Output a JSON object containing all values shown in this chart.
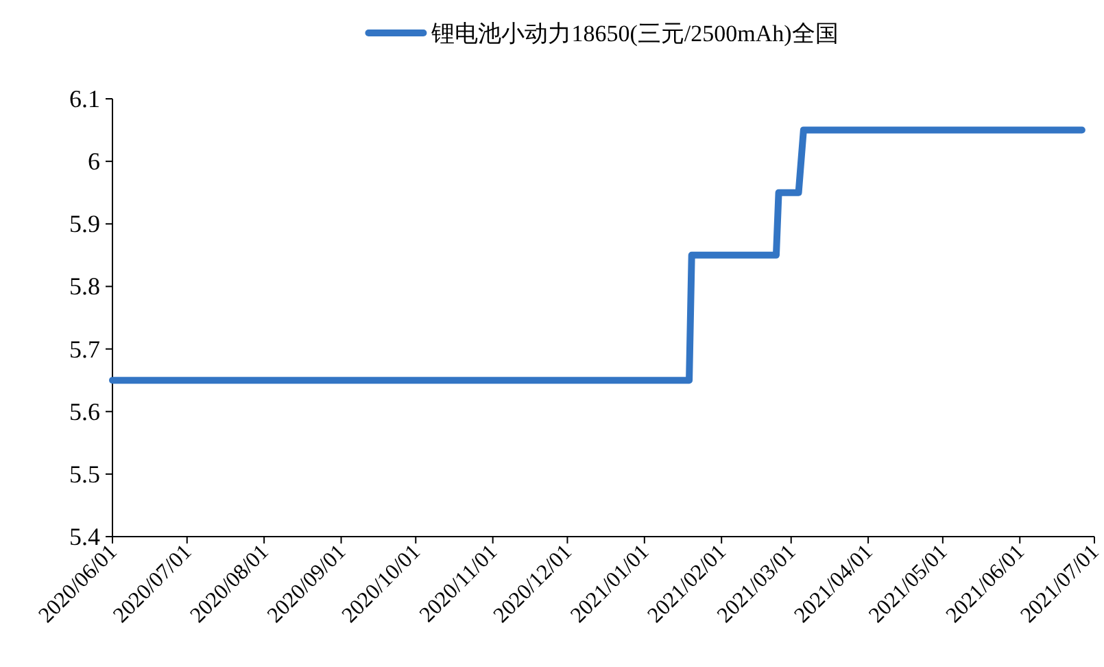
{
  "chart_data": {
    "type": "line",
    "x": [
      "2020-06-01",
      "2021-01-19",
      "2021-01-20",
      "2021-02-23",
      "2021-02-24",
      "2021-03-04",
      "2021-03-06",
      "2021-06-26"
    ],
    "series": [
      {
        "name": "锂电池小动力18650(三元/2500mAh)全国",
        "color": "#3375c4",
        "values": [
          5.65,
          5.65,
          5.85,
          5.85,
          5.95,
          5.95,
          6.05,
          6.05
        ]
      }
    ],
    "xlim": [
      "2020-06-01",
      "2021-07-01"
    ],
    "xticks": [
      {
        "value": "2020-06-01",
        "label": "2020/06/01"
      },
      {
        "value": "2020-07-01",
        "label": "2020/07/01"
      },
      {
        "value": "2020-08-01",
        "label": "2020/08/01"
      },
      {
        "value": "2020-09-01",
        "label": "2020/09/01"
      },
      {
        "value": "2020-10-01",
        "label": "2020/10/01"
      },
      {
        "value": "2020-11-01",
        "label": "2020/11/01"
      },
      {
        "value": "2020-12-01",
        "label": "2020/12/01"
      },
      {
        "value": "2021-01-01",
        "label": "2021/01/01"
      },
      {
        "value": "2021-02-01",
        "label": "2021/02/01"
      },
      {
        "value": "2021-03-01",
        "label": "2021/03/01"
      },
      {
        "value": "2021-04-01",
        "label": "2021/04/01"
      },
      {
        "value": "2021-05-01",
        "label": "2021/05/01"
      },
      {
        "value": "2021-06-01",
        "label": "2021/06/01"
      },
      {
        "value": "2021-07-01",
        "label": "2021/07/01"
      }
    ],
    "ylim": [
      5.4,
      6.1
    ],
    "yticks": [
      5.4,
      5.5,
      5.6,
      5.7,
      5.8,
      5.9,
      6,
      6.1
    ],
    "grid": false,
    "legend": "top",
    "marker": "none",
    "line_style": "solid"
  }
}
